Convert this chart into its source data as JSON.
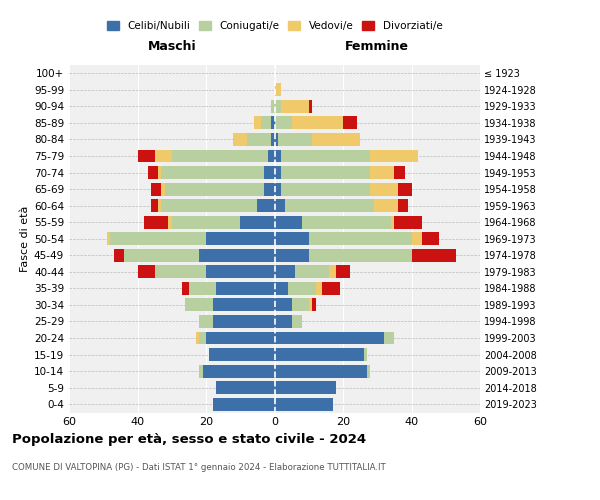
{
  "age_groups": [
    "0-4",
    "5-9",
    "10-14",
    "15-19",
    "20-24",
    "25-29",
    "30-34",
    "35-39",
    "40-44",
    "45-49",
    "50-54",
    "55-59",
    "60-64",
    "65-69",
    "70-74",
    "75-79",
    "80-84",
    "85-89",
    "90-94",
    "95-99",
    "100+"
  ],
  "birth_years": [
    "2019-2023",
    "2014-2018",
    "2009-2013",
    "2004-2008",
    "1999-2003",
    "1994-1998",
    "1989-1993",
    "1984-1988",
    "1979-1983",
    "1974-1978",
    "1969-1973",
    "1964-1968",
    "1959-1963",
    "1954-1958",
    "1949-1953",
    "1944-1948",
    "1939-1943",
    "1934-1938",
    "1929-1933",
    "1924-1928",
    "≤ 1923"
  ],
  "colors": {
    "celibi": "#3d6fa8",
    "coniugati": "#b8cfa0",
    "vedovi": "#f0c96a",
    "divorziati": "#cc1111"
  },
  "legend_labels": [
    "Celibi/Nubili",
    "Coniugati/e",
    "Vedovi/e",
    "Divorziati/e"
  ],
  "maschi": {
    "celibi": [
      18,
      17,
      21,
      19,
      20,
      18,
      18,
      17,
      20,
      22,
      20,
      10,
      5,
      3,
      3,
      2,
      1,
      1,
      0,
      0,
      0
    ],
    "coniugati": [
      0,
      0,
      1,
      0,
      2,
      4,
      8,
      8,
      15,
      22,
      28,
      20,
      28,
      29,
      30,
      28,
      7,
      3,
      1,
      0,
      0
    ],
    "vedovi": [
      0,
      0,
      0,
      0,
      1,
      0,
      0,
      0,
      0,
      0,
      1,
      1,
      1,
      1,
      1,
      5,
      4,
      2,
      0,
      0,
      0
    ],
    "divorziati": [
      0,
      0,
      0,
      0,
      0,
      0,
      0,
      2,
      5,
      3,
      0,
      7,
      2,
      3,
      3,
      5,
      0,
      0,
      0,
      0,
      0
    ]
  },
  "femmine": {
    "nubili": [
      17,
      18,
      27,
      26,
      32,
      5,
      5,
      4,
      6,
      10,
      10,
      8,
      3,
      2,
      2,
      2,
      1,
      0,
      0,
      0,
      0
    ],
    "coniugate": [
      0,
      0,
      1,
      1,
      3,
      3,
      5,
      8,
      10,
      30,
      30,
      26,
      26,
      26,
      26,
      26,
      10,
      5,
      2,
      0,
      0
    ],
    "vedove": [
      0,
      0,
      0,
      0,
      0,
      0,
      1,
      2,
      2,
      0,
      3,
      1,
      7,
      8,
      7,
      14,
      14,
      15,
      8,
      2,
      0
    ],
    "divorziate": [
      0,
      0,
      0,
      0,
      0,
      0,
      1,
      5,
      4,
      13,
      5,
      8,
      3,
      4,
      3,
      0,
      0,
      4,
      1,
      0,
      0
    ]
  },
  "title": "Popolazione per età, sesso e stato civile - 2024",
  "subtitle": "COMUNE DI VALTOPINA (PG) - Dati ISTAT 1° gennaio 2024 - Elaborazione TUTTITALIA.IT",
  "xlabel_left": "Maschi",
  "xlabel_right": "Femmine",
  "ylabel_left": "Fasce di età",
  "xlim": 60,
  "bg_color": "#f0f0f0"
}
